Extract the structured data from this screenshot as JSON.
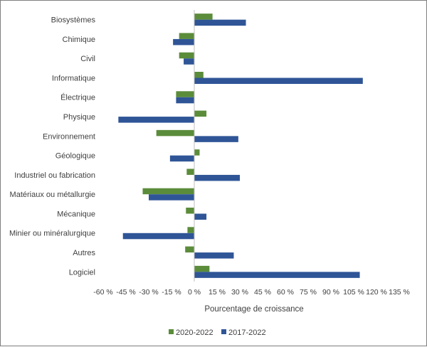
{
  "chart_data": {
    "type": "bar",
    "orientation": "horizontal",
    "categories": [
      "Biosystèmes",
      "Chimique",
      "Civil",
      "Informatique",
      "Électrique",
      "Physique",
      "Environnement",
      "Géologique",
      "Industriel ou fabrication",
      "Matériaux ou métallurgie",
      "Mécanique",
      "Minier ou minéralurgique",
      "Autres",
      "Logiciel"
    ],
    "series": [
      {
        "name": "2020-2022",
        "color": "#5b8c3a",
        "values": [
          12,
          -10,
          -10,
          6,
          -12,
          8,
          -25,
          3.5,
          -5,
          -34,
          -5.5,
          -4.5,
          -6,
          10
        ]
      },
      {
        "name": "2017-2022",
        "color": "#2f5597",
        "values": [
          34,
          -14,
          -7,
          111,
          -12,
          -50,
          29,
          -16,
          30,
          -30,
          8,
          -47,
          26,
          109
        ]
      }
    ],
    "xlabel": "Pourcentage de croissance",
    "xlim": [
      -60,
      135
    ],
    "xticks": [
      -60,
      -45,
      -30,
      -15,
      0,
      15,
      30,
      45,
      60,
      75,
      90,
      105,
      120,
      135
    ],
    "xtick_labels": [
      "-60 %",
      "-45 %",
      "-30 %",
      "-15 %",
      "0 %",
      "15 %",
      "30 %",
      "45 %",
      "60 %",
      "75 %",
      "90 %",
      "105 %",
      "120 %",
      "135 %"
    ],
    "grid": false,
    "legend_position": "bottom"
  }
}
